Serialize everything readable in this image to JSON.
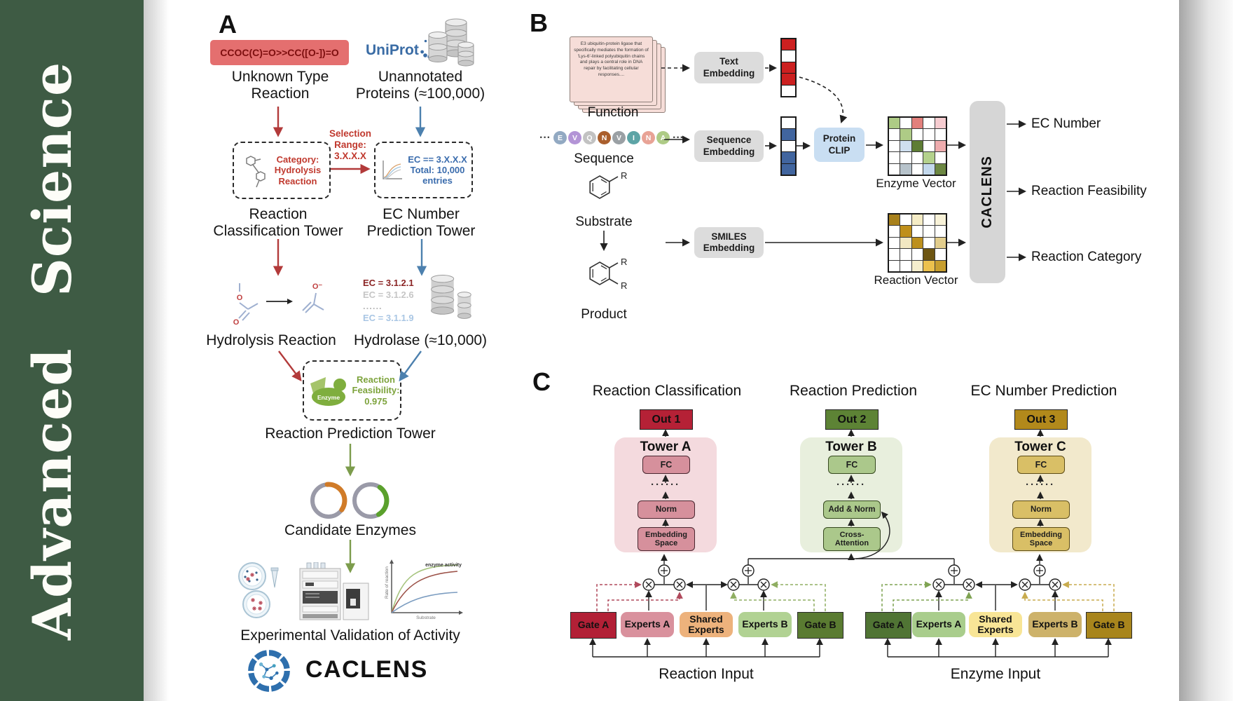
{
  "banner": {
    "journal_name": "Advanced Science",
    "bg_color": "#3e5b44"
  },
  "panelA": {
    "label": "A",
    "smiles_reaction": "CCOC(C)=O>>CC([O-])=O",
    "unknown_type": "Unknown Type\nReaction",
    "uniprot": "UniProt",
    "unannotated": "Unannotated\nProteins (≈100,000)",
    "selection_range": "Selection\nRange:\n3.X.X.X",
    "category_box": "Category:\nHydrolysis\nReaction",
    "ec_box": "EC == 3.X.X.X\nTotal: 10,000\nentries",
    "classification_tower": "Reaction\nClassification Tower",
    "ec_prediction_tower": "EC Number\nPrediction Tower",
    "ec_list": [
      "EC = 3.1.2.1",
      "EC = 3.1.2.6",
      "......",
      "EC = 3.1.1.9"
    ],
    "hydrolysis_reaction": "Hydrolysis Reaction",
    "hydrolase": "Hydrolase (≈10,000)",
    "enzyme_label": "Enzyme",
    "feasibility": "Reaction\nFeasibility:\n0.975",
    "reaction_prediction_tower": "Reaction Prediction Tower",
    "candidate_enzymes": "Candidate Enzymes",
    "experimental_validation": "Experimental Validation of Activity",
    "logo_text": "CACLENS",
    "graph": {
      "ylabel": "Rate of reaction",
      "xlabel": "Substrate",
      "annotation": "enzyme activity"
    },
    "accent_colors": {
      "red_arrow": "#b23a3a",
      "blue_arrow": "#4c80ae",
      "green_arrow": "#7c9c4c",
      "smiles_bg": "#e46f6f"
    }
  },
  "panelB": {
    "label": "B",
    "function_text": "E3 ubiquitin-protein ligase that specifically mediates the formation of 'Lys-6'-linked polyubiquitin chains and plays a central role in DNA repair by facilitating cellular responses....",
    "function_label": "Function",
    "ellipsis": "···",
    "amino_acids": [
      {
        "letter": "E",
        "color": "#92a9c2"
      },
      {
        "letter": "V",
        "color": "#b394d6"
      },
      {
        "letter": "Q",
        "color": "#c2c2c2"
      },
      {
        "letter": "N",
        "color": "#aa5f2d"
      },
      {
        "letter": "V",
        "color": "#9aa0a4"
      },
      {
        "letter": "I",
        "color": "#5da4a6"
      },
      {
        "letter": "N",
        "color": "#e8a396"
      },
      {
        "letter": "A",
        "color": "#aecb86"
      }
    ],
    "sequence_label": "Sequence",
    "substrate_label": "Substrate",
    "product_label": "Product",
    "r_group": "R",
    "text_embedding": "Text\nEmbedding",
    "sequence_embedding": "Sequence\nEmbedding",
    "smiles_embedding": "SMILES\nEmbedding",
    "protein_clip": "Protein\nCLIP",
    "enzyme_vector_label": "Enzyme Vector",
    "reaction_vector_label": "Reaction Vector",
    "caclens": "CACLENS",
    "outputs": [
      "EC Number",
      "Reaction Feasibility",
      "Reaction Category"
    ],
    "text_vector_cells": [
      "#cc2020",
      "#ffffff",
      "#cc2020",
      "#cc2020",
      "#ffffff"
    ],
    "seq_vector_cells": [
      "#ffffff",
      "#41659f",
      "#ffffff",
      "#41659f",
      "#41659f"
    ],
    "enzyme_vector_cells": [
      "#aecb86",
      "#ffffff",
      "#e2807c",
      "#ffffff",
      "#f6ccd0",
      "#ffffff",
      "#aecb86",
      "#ffffff",
      "#ffffff",
      "#ffffff",
      "#ffffff",
      "#cfdfef",
      "#5e7d35",
      "#ffffff",
      "#eeacae",
      "#ffffff",
      "#ffffff",
      "#ffffff",
      "#b4d18c",
      "#ffffff",
      "#ffffff",
      "#b7c3cb",
      "#ffffff",
      "#c3d8ec",
      "#6c8742"
    ],
    "reaction_vector_cells": [
      "#a8811c",
      "#ffffff",
      "#f5ecc6",
      "#ffffff",
      "#f8f2d8",
      "#ffffff",
      "#bf8f1a",
      "#ffffff",
      "#ffffff",
      "#ffffff",
      "#ffffff",
      "#f2e8c2",
      "#bd901d",
      "#ffffff",
      "#e2cd8c",
      "#ffffff",
      "#ffffff",
      "#ffffff",
      "#6d5512",
      "#ffffff",
      "#ffffff",
      "#ffffff",
      "#f5eecd",
      "#ecc14d",
      "#c79e2e"
    ]
  },
  "panelC": {
    "label": "C",
    "columns": [
      {
        "title": "Reaction Classification",
        "out": "Out 1",
        "out_color": "#b52136",
        "tower": "Tower A",
        "tower_bg": "#f4dade",
        "fc": "FC",
        "dots": "······",
        "norm": "Norm",
        "embed": "Embedding\nSpace"
      },
      {
        "title": "Reaction Prediction",
        "out": "Out 2",
        "out_color": "#5d8335",
        "tower": "Tower B",
        "tower_bg": "#e8efdd",
        "fc": "FC",
        "dots": "······",
        "norm": "Add & Norm",
        "embed": "Cross-\nAttention"
      },
      {
        "title": "EC Number Prediction",
        "out": "Out 3",
        "out_color": "#b2891b",
        "tower": "Tower C",
        "tower_bg": "#f2e9cc",
        "fc": "FC",
        "dots": "······",
        "norm": "Norm",
        "embed": "Embedding\nSpace"
      }
    ],
    "groups": [
      {
        "label": "Reaction Input",
        "boxes": [
          "Gate A",
          "Experts A",
          "Shared\nExperts",
          "Experts B",
          "Gate B"
        ],
        "box_colors": [
          "#b22036",
          "#d9919d",
          "#edb27c",
          "#b1d293",
          "#5a7b31"
        ],
        "gate_a_dash": "#b0495c",
        "gate_b_dash": "#8fae62"
      },
      {
        "label": "Enzyme Input",
        "boxes": [
          "Gate A",
          "Experts A",
          "Shared\nExperts",
          "Experts B",
          "Gate B"
        ],
        "box_colors": [
          "#507434",
          "#a9cd8c",
          "#f8e596",
          "#cdb26a",
          "#a8851c"
        ],
        "gate_a_dash": "#7fa352",
        "gate_b_dash": "#c8ab4e"
      }
    ]
  }
}
